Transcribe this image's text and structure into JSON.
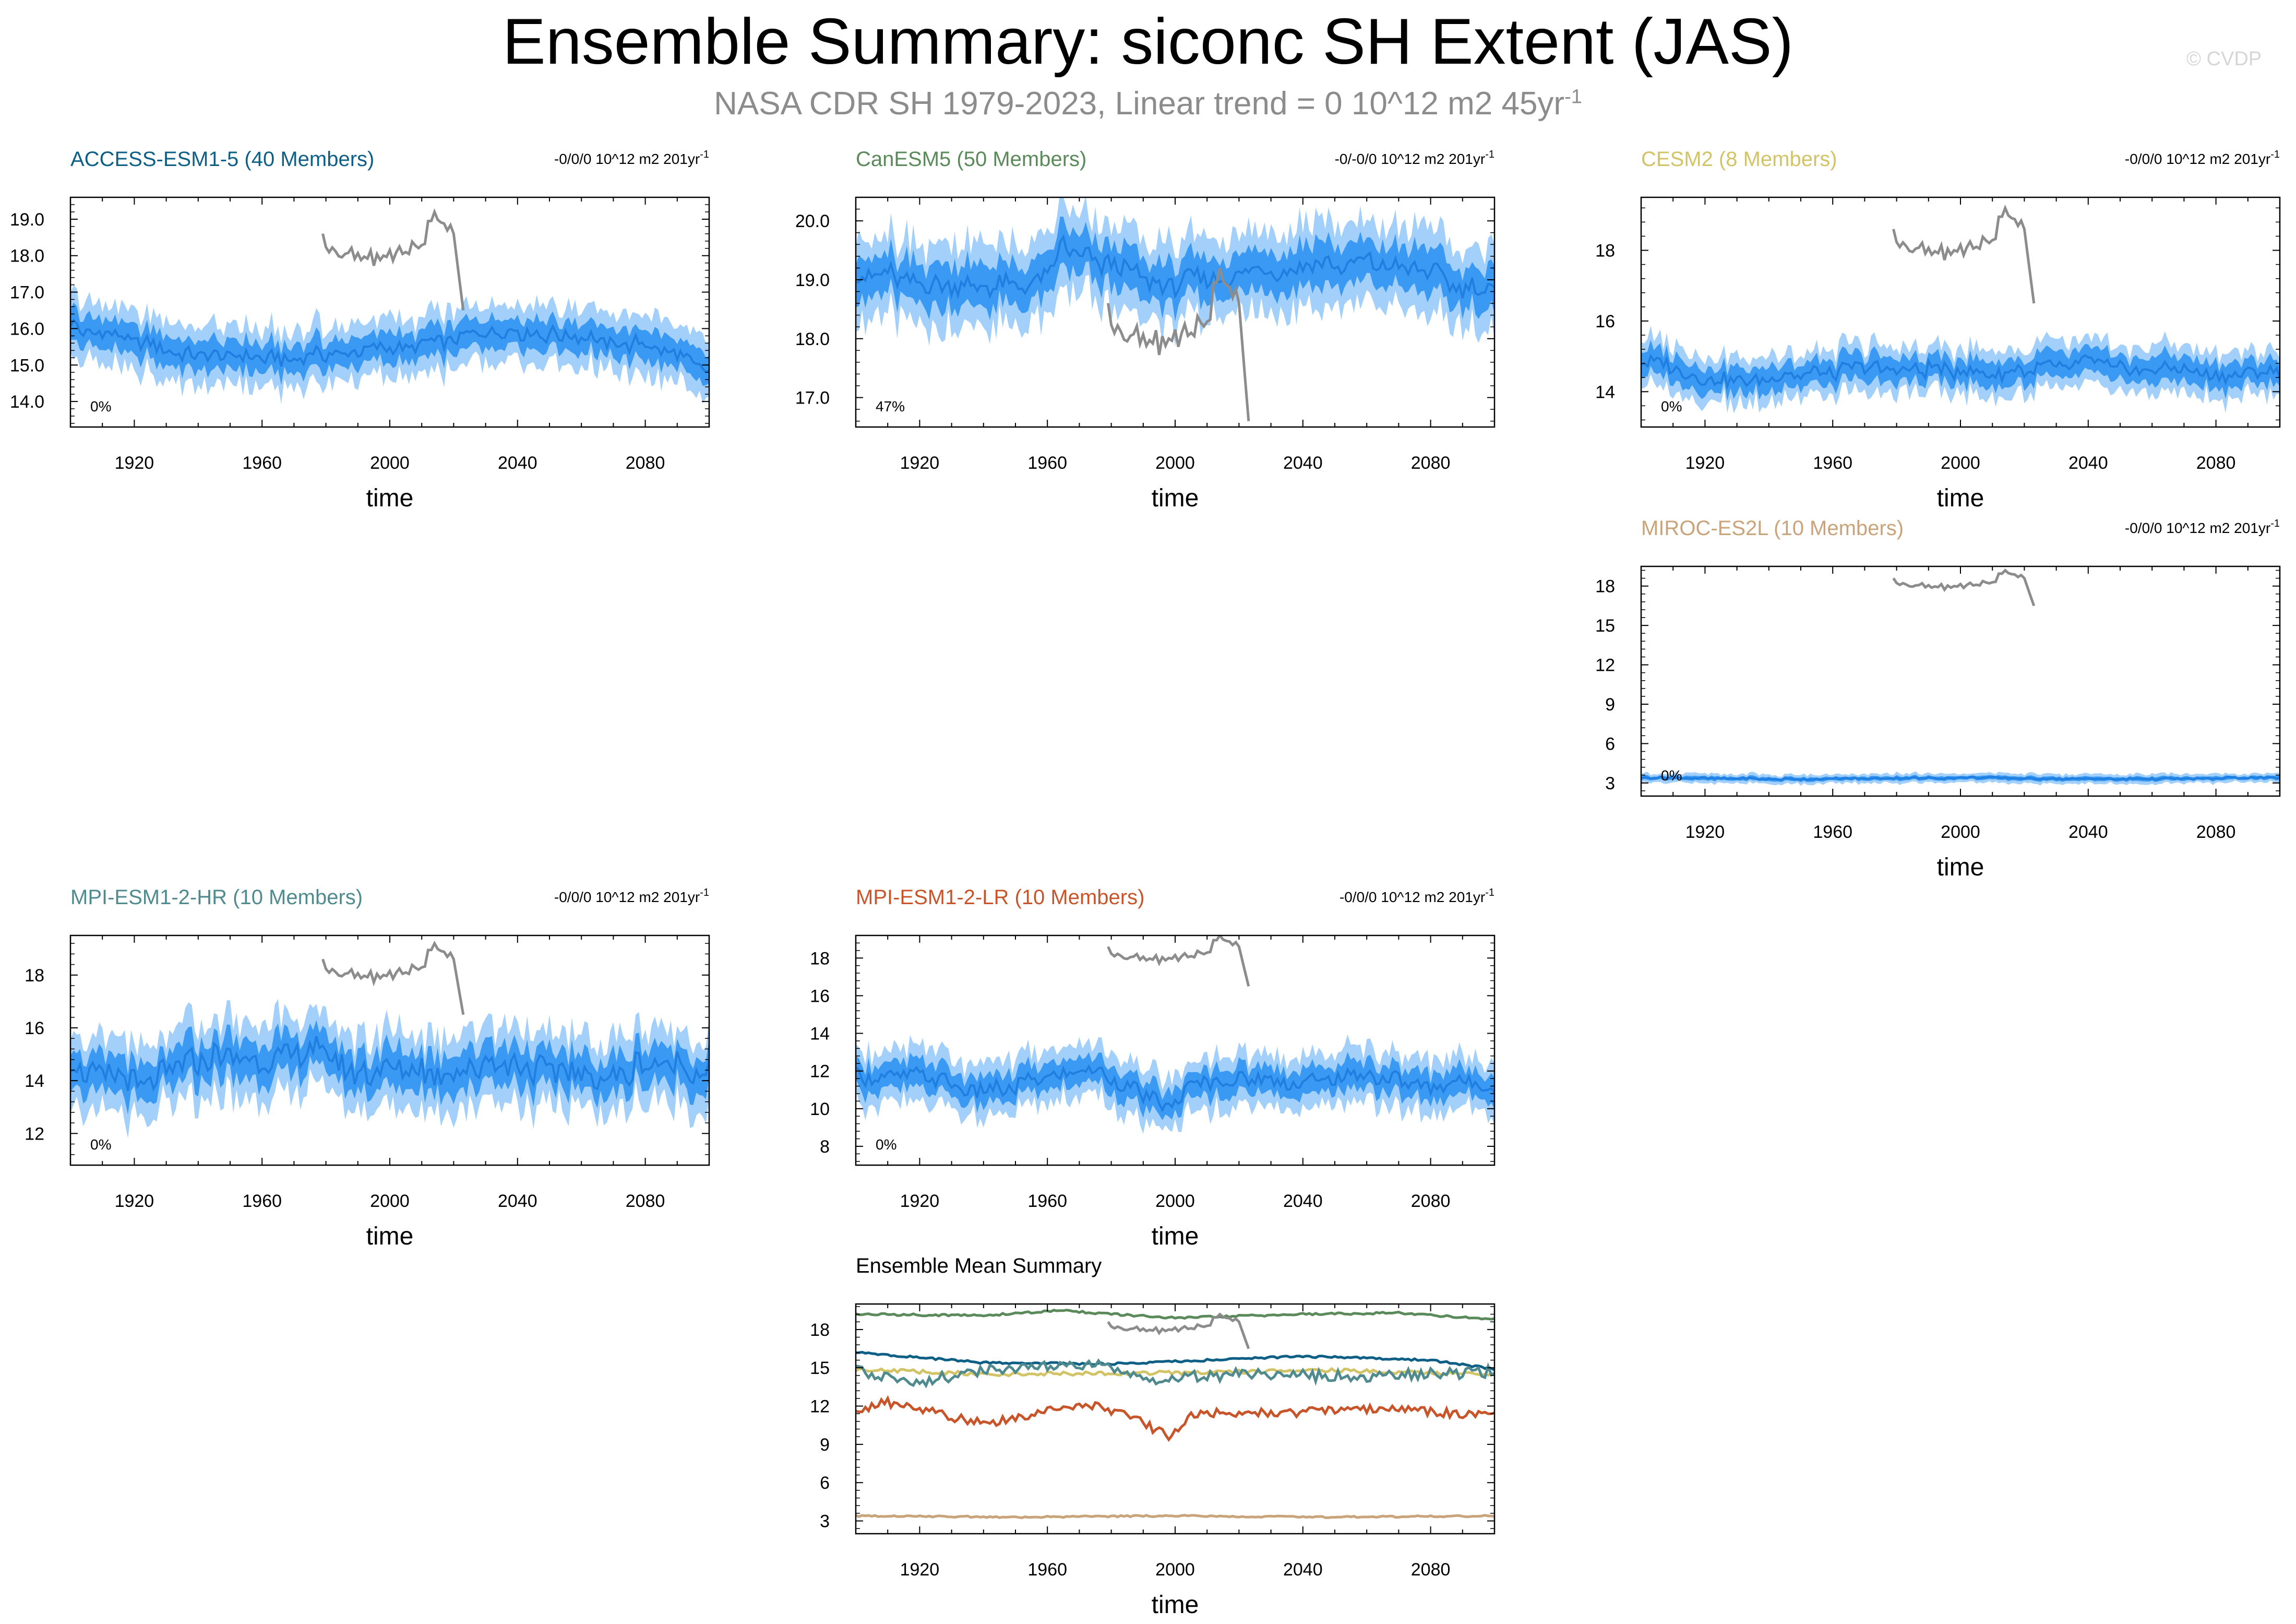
{
  "title": "Ensemble Summary: siconc SH Extent (JAS)",
  "subtitle_main": "NASA CDR SH 1979-2023, Linear trend = 0 10^12 m2 45yr",
  "subtitle_sup": "-1",
  "credit": "© CVDP",
  "xlabel": "time",
  "x_ticks": [
    1920,
    1960,
    2000,
    2040,
    2080
  ],
  "x_range": [
    1900,
    2100
  ],
  "obs_years": [
    1979,
    2023
  ],
  "colors": {
    "band_outer": "#a3d0fb",
    "band_inner": "#3a99f3",
    "ens_mean": "#1f7fe0",
    "obs": "#8c8c8c",
    "ACCESS-ESM1-5": "#0d5f86",
    "CanESM5": "#5a8a5a",
    "CESM2": "#d2c466",
    "MIROC-ES2L": "#c9a37a",
    "MPI-ESM1-2-HR": "#4f8a8f",
    "MPI-ESM1-2-LR": "#c8542a"
  },
  "chart_data": [
    {
      "type": "area",
      "model": "ACCESS-ESM1-5",
      "title": "ACCESS-ESM1-5 (40 Members)",
      "trend_label": "-0/0/0 10^12 m2 201yr",
      "trend_sup": "-1",
      "pct_label": "0%",
      "xlabel": "time",
      "ylim": [
        13.3,
        19.6
      ],
      "y_ticks": [
        14.0,
        15.0,
        16.0,
        17.0,
        18.0,
        19.0
      ],
      "y_decimals": 1,
      "ens_mean_profile": [
        [
          1900,
          16.1
        ],
        [
          1920,
          15.6
        ],
        [
          1940,
          15.2
        ],
        [
          1960,
          15.2
        ],
        [
          1980,
          15.3
        ],
        [
          2000,
          15.4
        ],
        [
          2020,
          15.7
        ],
        [
          2040,
          15.9
        ],
        [
          2060,
          15.8
        ],
        [
          2080,
          15.5
        ],
        [
          2100,
          14.9
        ]
      ],
      "inner_halfwidth": 0.4,
      "outer_halfwidth": 0.8,
      "variability": 0.3,
      "obs_profile": [
        [
          1979,
          18.4
        ],
        [
          1990,
          17.9
        ],
        [
          2000,
          18.0
        ],
        [
          2010,
          18.3
        ],
        [
          2014,
          19.2
        ],
        [
          2020,
          18.6
        ],
        [
          2023,
          16.5
        ]
      ]
    },
    {
      "type": "area",
      "model": "CanESM5",
      "title": "CanESM5 (50 Members)",
      "trend_label": "-0/-0/0 10^12 m2 201yr",
      "trend_sup": "-1",
      "pct_label": "47%",
      "xlabel": "time",
      "ylim": [
        16.5,
        20.4
      ],
      "y_ticks": [
        17.0,
        18.0,
        19.0,
        20.0
      ],
      "y_decimals": 1,
      "ens_mean_profile": [
        [
          1900,
          19.1
        ],
        [
          1920,
          19.0
        ],
        [
          1940,
          18.9
        ],
        [
          1960,
          19.0
        ],
        [
          1965,
          19.6
        ],
        [
          1980,
          19.2
        ],
        [
          2000,
          18.9
        ],
        [
          2020,
          19.1
        ],
        [
          2040,
          19.2
        ],
        [
          2060,
          19.3
        ],
        [
          2080,
          19.1
        ],
        [
          2100,
          18.7
        ]
      ],
      "inner_halfwidth": 0.35,
      "outer_halfwidth": 0.7,
      "variability": 0.25,
      "obs_profile": [
        [
          1979,
          18.4
        ],
        [
          1990,
          17.9
        ],
        [
          2000,
          18.0
        ],
        [
          2010,
          18.3
        ],
        [
          2014,
          19.2
        ],
        [
          2020,
          18.6
        ],
        [
          2023,
          16.6
        ]
      ]
    },
    {
      "type": "area",
      "model": "CESM2",
      "title": "CESM2 (8 Members)",
      "trend_label": "-0/0/0 10^12 m2 201yr",
      "trend_sup": "-1",
      "pct_label": "0%",
      "xlabel": "time",
      "ylim": [
        13.0,
        19.5
      ],
      "y_ticks": [
        14,
        16,
        18
      ],
      "y_decimals": 0,
      "ens_mean_profile": [
        [
          1900,
          14.9
        ],
        [
          1920,
          14.4
        ],
        [
          1940,
          14.4
        ],
        [
          1960,
          14.6
        ],
        [
          1980,
          14.7
        ],
        [
          2000,
          14.6
        ],
        [
          2020,
          14.6
        ],
        [
          2040,
          14.8
        ],
        [
          2060,
          14.6
        ],
        [
          2080,
          14.5
        ],
        [
          2100,
          14.5
        ]
      ],
      "inner_halfwidth": 0.35,
      "outer_halfwidth": 0.65,
      "variability": 0.3,
      "obs_profile": [
        [
          1979,
          18.4
        ],
        [
          1990,
          17.9
        ],
        [
          2000,
          18.0
        ],
        [
          2010,
          18.3
        ],
        [
          2014,
          19.2
        ],
        [
          2020,
          18.6
        ],
        [
          2023,
          16.5
        ]
      ]
    },
    {
      "type": "area",
      "model": "MIROC-ES2L",
      "title": "MIROC-ES2L (10 Members)",
      "trend_label": "-0/0/0 10^12 m2 201yr",
      "trend_sup": "-1",
      "pct_label": "0%",
      "xlabel": "time",
      "ylim": [
        2.0,
        19.5
      ],
      "y_ticks": [
        3,
        6,
        9,
        12,
        15,
        18
      ],
      "y_decimals": 0,
      "ens_mean_profile": [
        [
          1900,
          3.4
        ],
        [
          1950,
          3.3
        ],
        [
          2000,
          3.4
        ],
        [
          2050,
          3.3
        ],
        [
          2100,
          3.4
        ]
      ],
      "inner_halfwidth": 0.15,
      "outer_halfwidth": 0.35,
      "variability": 0.1,
      "obs_profile": [
        [
          1979,
          18.4
        ],
        [
          1990,
          17.9
        ],
        [
          2000,
          18.0
        ],
        [
          2010,
          18.3
        ],
        [
          2014,
          19.2
        ],
        [
          2020,
          18.6
        ],
        [
          2023,
          16.5
        ]
      ]
    },
    {
      "type": "area",
      "model": "MPI-ESM1-2-HR",
      "title": "MPI-ESM1-2-HR (10 Members)",
      "trend_label": "-0/0/0 10^12 m2 201yr",
      "trend_sup": "-1",
      "pct_label": "0%",
      "xlabel": "time",
      "ylim": [
        10.8,
        19.5
      ],
      "y_ticks": [
        12,
        14,
        16,
        18
      ],
      "y_decimals": 0,
      "ens_mean_profile": [
        [
          1900,
          14.7
        ],
        [
          1920,
          13.9
        ],
        [
          1940,
          14.8
        ],
        [
          1960,
          14.6
        ],
        [
          1975,
          15.2
        ],
        [
          1990,
          14.2
        ],
        [
          2000,
          14.4
        ],
        [
          2020,
          14.5
        ],
        [
          2040,
          14.6
        ],
        [
          2060,
          14.3
        ],
        [
          2080,
          14.5
        ],
        [
          2100,
          14.6
        ]
      ],
      "inner_halfwidth": 0.7,
      "outer_halfwidth": 1.4,
      "variability": 0.8,
      "obs_profile": [
        [
          1979,
          18.4
        ],
        [
          1990,
          17.9
        ],
        [
          2000,
          18.0
        ],
        [
          2010,
          18.3
        ],
        [
          2014,
          19.2
        ],
        [
          2020,
          18.6
        ],
        [
          2023,
          16.5
        ]
      ]
    },
    {
      "type": "area",
      "model": "MPI-ESM1-2-LR",
      "title": "MPI-ESM1-2-LR (10 Members)",
      "trend_label": "-0/0/0 10^12 m2 201yr",
      "trend_sup": "-1",
      "pct_label": "0%",
      "xlabel": "time",
      "ylim": [
        7.0,
        19.2
      ],
      "y_ticks": [
        8,
        10,
        12,
        14,
        16,
        18
      ],
      "y_decimals": 0,
      "ens_mean_profile": [
        [
          1900,
          11.6
        ],
        [
          1920,
          11.8
        ],
        [
          1940,
          10.8
        ],
        [
          1960,
          11.6
        ],
        [
          1975,
          12.2
        ],
        [
          1985,
          11.2
        ],
        [
          1998,
          9.9
        ],
        [
          2005,
          11.3
        ],
        [
          2020,
          11.6
        ],
        [
          2040,
          11.5
        ],
        [
          2060,
          11.8
        ],
        [
          2080,
          11.3
        ],
        [
          2100,
          11.2
        ]
      ],
      "inner_halfwidth": 0.7,
      "outer_halfwidth": 1.4,
      "variability": 0.6,
      "obs_profile": [
        [
          1979,
          18.4
        ],
        [
          1990,
          17.9
        ],
        [
          2000,
          18.0
        ],
        [
          2010,
          18.3
        ],
        [
          2014,
          19.2
        ],
        [
          2020,
          18.6
        ],
        [
          2023,
          16.5
        ]
      ]
    },
    {
      "type": "line",
      "model": "summary",
      "title": "Ensemble Mean Summary",
      "xlabel": "time",
      "ylim": [
        2.0,
        20.0
      ],
      "y_ticks": [
        3,
        6,
        9,
        12,
        15,
        18
      ],
      "y_decimals": 0,
      "series": [
        {
          "name": "CanESM5",
          "variability": 0.08,
          "profile": [
            [
              1900,
              19.2
            ],
            [
              1940,
              19.1
            ],
            [
              1965,
              19.5
            ],
            [
              1980,
              19.2
            ],
            [
              2000,
              18.9
            ],
            [
              2040,
              19.2
            ],
            [
              2070,
              19.3
            ],
            [
              2100,
              18.8
            ]
          ]
        },
        {
          "name": "ACCESS-ESM1-5",
          "variability": 0.08,
          "profile": [
            [
              1900,
              16.2
            ],
            [
              1940,
              15.4
            ],
            [
              1980,
              15.3
            ],
            [
              2040,
              15.9
            ],
            [
              2080,
              15.6
            ],
            [
              2100,
              14.9
            ]
          ]
        },
        {
          "name": "CESM2",
          "variability": 0.15,
          "profile": [
            [
              1900,
              14.9
            ],
            [
              1940,
              14.5
            ],
            [
              2000,
              14.6
            ],
            [
              2050,
              14.8
            ],
            [
              2100,
              14.5
            ]
          ]
        },
        {
          "name": "MPI-ESM1-2-HR",
          "variability": 0.45,
          "profile": [
            [
              1900,
              14.8
            ],
            [
              1920,
              13.9
            ],
            [
              1940,
              14.8
            ],
            [
              1975,
              15.2
            ],
            [
              1990,
              14.1
            ],
            [
              2020,
              14.5
            ],
            [
              2060,
              14.3
            ],
            [
              2100,
              14.7
            ]
          ]
        },
        {
          "name": "MPI-ESM1-2-LR",
          "variability": 0.35,
          "profile": [
            [
              1900,
              11.6
            ],
            [
              1910,
              12.3
            ],
            [
              1940,
              10.6
            ],
            [
              1960,
              11.6
            ],
            [
              1975,
              12.1
            ],
            [
              1985,
              11.3
            ],
            [
              1998,
              9.6
            ],
            [
              2005,
              11.4
            ],
            [
              2040,
              11.5
            ],
            [
              2060,
              11.8
            ],
            [
              2100,
              11.3
            ]
          ]
        },
        {
          "name": "MIROC-ES2L",
          "variability": 0.06,
          "profile": [
            [
              1900,
              3.4
            ],
            [
              1950,
              3.3
            ],
            [
              2000,
              3.4
            ],
            [
              2050,
              3.3
            ],
            [
              2100,
              3.4
            ]
          ]
        }
      ],
      "obs_profile": [
        [
          1979,
          18.4
        ],
        [
          1990,
          17.9
        ],
        [
          2000,
          18.0
        ],
        [
          2010,
          18.3
        ],
        [
          2014,
          19.2
        ],
        [
          2020,
          18.6
        ],
        [
          2023,
          16.5
        ]
      ]
    }
  ]
}
